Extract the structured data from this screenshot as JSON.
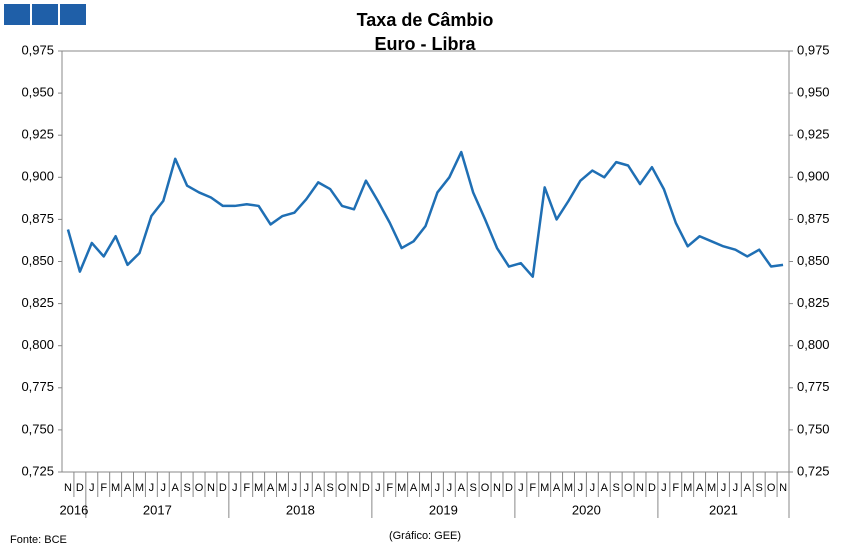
{
  "chart_data": {
    "type": "line",
    "title": "Taxa de Câmbio",
    "subtitle": "Euro - Libra",
    "source": "Fonte: BCE",
    "note": "(Gráfico: GEE)",
    "categories": [
      "N",
      "D",
      "J",
      "F",
      "M",
      "A",
      "M",
      "J",
      "J",
      "A",
      "S",
      "O",
      "N",
      "D",
      "J",
      "F",
      "M",
      "A",
      "M",
      "J",
      "J",
      "A",
      "S",
      "O",
      "N",
      "D",
      "J",
      "F",
      "M",
      "A",
      "M",
      "J",
      "J",
      "A",
      "S",
      "O",
      "N",
      "D",
      "J",
      "F",
      "M",
      "A",
      "M",
      "J",
      "J",
      "A",
      "S",
      "O",
      "N",
      "D",
      "J",
      "F",
      "M",
      "A",
      "M",
      "J",
      "J",
      "A",
      "S",
      "O",
      "N"
    ],
    "years": [
      "2016",
      "2017",
      "2018",
      "2019",
      "2020",
      "2021"
    ],
    "values": [
      0.869,
      0.844,
      0.861,
      0.853,
      0.865,
      0.848,
      0.855,
      0.877,
      0.886,
      0.911,
      0.895,
      0.891,
      0.888,
      0.883,
      0.883,
      0.884,
      0.883,
      0.872,
      0.877,
      0.879,
      0.887,
      0.897,
      0.893,
      0.883,
      0.881,
      0.898,
      0.886,
      0.873,
      0.858,
      0.862,
      0.871,
      0.891,
      0.9,
      0.915,
      0.891,
      0.875,
      0.858,
      0.847,
      0.849,
      0.841,
      0.894,
      0.875,
      0.886,
      0.898,
      0.904,
      0.9,
      0.909,
      0.907,
      0.896,
      0.906,
      0.893,
      0.873,
      0.859,
      0.865,
      0.862,
      0.859,
      0.857,
      0.853,
      0.857,
      0.847,
      0.848
    ],
    "color": "#1f6fb4",
    "ylim": [
      0.725,
      0.975
    ],
    "yticks": [
      {
        "value": 0.725,
        "label": "0,725"
      },
      {
        "value": 0.75,
        "label": "0,750"
      },
      {
        "value": 0.775,
        "label": "0,775"
      },
      {
        "value": 0.8,
        "label": "0,800"
      },
      {
        "value": 0.825,
        "label": "0,825"
      },
      {
        "value": 0.85,
        "label": "0,850"
      },
      {
        "value": 0.875,
        "label": "0,875"
      },
      {
        "value": 0.9,
        "label": "0,900"
      },
      {
        "value": 0.925,
        "label": "0,925"
      },
      {
        "value": 0.95,
        "label": "0,950"
      },
      {
        "value": 0.975,
        "label": "0,975"
      }
    ],
    "grid": false
  }
}
